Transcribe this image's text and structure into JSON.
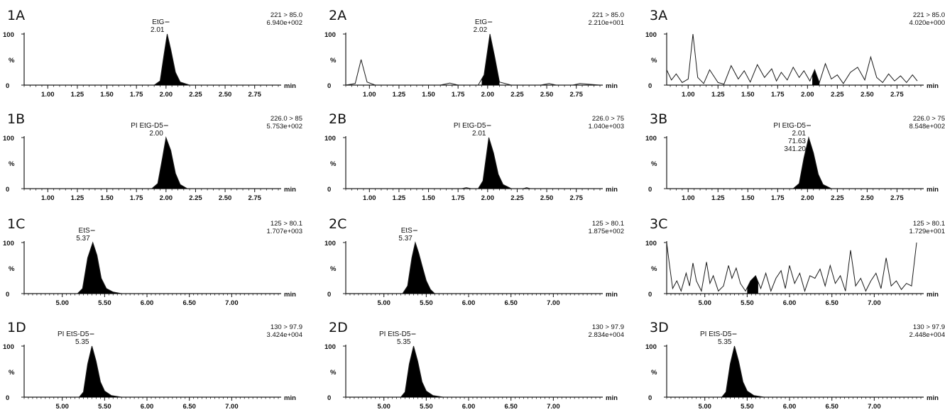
{
  "y_axis": {
    "top_label": "100",
    "mid_label": "%",
    "bottom_label": "0"
  },
  "x_unit": "min",
  "colors": {
    "trace": "#1a1a1a",
    "fill": "#000000",
    "axis": "#1a1a1a"
  },
  "chart_data": [
    {
      "panel": "1A",
      "type": "line",
      "transition": "221 > 85.0",
      "intensity": "6.940e+002",
      "xlim": [
        0.8,
        2.95
      ],
      "ylim": [
        0,
        100
      ],
      "ticks": [
        "1.00",
        "1.25",
        "1.50",
        "1.75",
        "2.00",
        "2.25",
        "2.50",
        "2.75"
      ],
      "peak_labels": [
        "EtG",
        "2.01"
      ],
      "series": [
        {
          "x": [
            0.8,
            1.9,
            1.95,
            1.98,
            2.01,
            2.04,
            2.08,
            2.12,
            2.2,
            2.95
          ],
          "y": [
            0,
            0,
            8,
            55,
            100,
            70,
            25,
            6,
            0,
            0
          ]
        }
      ],
      "shaded": [
        1.9,
        2.2
      ]
    },
    {
      "panel": "2A",
      "type": "line",
      "transition": "221 > 85.0",
      "intensity": "2.210e+001",
      "xlim": [
        0.8,
        2.95
      ],
      "ylim": [
        0,
        100
      ],
      "ticks": [
        "1.00",
        "1.25",
        "1.50",
        "1.75",
        "2.00",
        "2.25",
        "2.50",
        "2.75"
      ],
      "peak_labels": [
        "EtG",
        "2.02"
      ],
      "series": [
        {
          "x": [
            0.8,
            0.88,
            0.93,
            0.98,
            1.05,
            1.6,
            1.68,
            1.75,
            1.92,
            1.97,
            2.02,
            2.06,
            2.1,
            2.2,
            2.45,
            2.52,
            2.58,
            2.72,
            2.78,
            2.95
          ],
          "y": [
            0,
            3,
            50,
            6,
            0,
            0,
            4,
            0,
            0,
            20,
            100,
            55,
            6,
            0,
            0,
            3,
            0,
            0,
            3,
            0
          ]
        }
      ],
      "shaded": [
        1.95,
        2.1
      ]
    },
    {
      "panel": "3A",
      "type": "line",
      "transition": "221 > 85.0",
      "intensity": "4.020e+000",
      "xlim": [
        0.82,
        2.95
      ],
      "ylim": [
        0,
        100
      ],
      "ticks": [
        "1.00",
        "1.25",
        "1.50",
        "1.75",
        "2.00",
        "2.25",
        "2.50",
        "2.75"
      ],
      "peak_labels": [],
      "series": [
        {
          "x": [
            0.82,
            0.86,
            0.9,
            0.95,
            1.0,
            1.04,
            1.08,
            1.13,
            1.18,
            1.25,
            1.3,
            1.36,
            1.42,
            1.47,
            1.52,
            1.58,
            1.64,
            1.7,
            1.74,
            1.78,
            1.83,
            1.88,
            1.93,
            1.97,
            2.02,
            2.06,
            2.1,
            2.15,
            2.2,
            2.25,
            2.3,
            2.36,
            2.42,
            2.48,
            2.53,
            2.58,
            2.63,
            2.68,
            2.73,
            2.78,
            2.83,
            2.88,
            2.92
          ],
          "y": [
            30,
            10,
            22,
            5,
            12,
            100,
            15,
            3,
            30,
            5,
            2,
            38,
            12,
            28,
            6,
            40,
            15,
            32,
            8,
            25,
            10,
            35,
            15,
            28,
            8,
            30,
            5,
            42,
            12,
            20,
            3,
            25,
            35,
            10,
            55,
            15,
            5,
            22,
            8,
            18,
            5,
            20,
            8
          ]
        }
      ],
      "shaded": [
        2.04,
        2.1
      ]
    },
    {
      "panel": "1B",
      "type": "line",
      "transition": "226.0 > 85",
      "intensity": "5.753e+002",
      "xlim": [
        0.8,
        2.95
      ],
      "ylim": [
        0,
        100
      ],
      "ticks": [
        "1.00",
        "1.25",
        "1.50",
        "1.75",
        "2.00",
        "2.25",
        "2.50",
        "2.75"
      ],
      "peak_labels": [
        "PI EtG-D5",
        "2.00"
      ],
      "series": [
        {
          "x": [
            0.8,
            1.88,
            1.93,
            1.97,
            2.0,
            2.04,
            2.08,
            2.12,
            2.18,
            2.95
          ],
          "y": [
            0,
            0,
            10,
            60,
            100,
            75,
            30,
            8,
            0,
            0
          ]
        }
      ],
      "shaded": [
        1.88,
        2.18
      ]
    },
    {
      "panel": "2B",
      "type": "line",
      "transition": "226.0 > 75",
      "intensity": "1.040e+003",
      "xlim": [
        0.8,
        2.95
      ],
      "ylim": [
        0,
        100
      ],
      "ticks": [
        "1.00",
        "1.25",
        "1.50",
        "1.75",
        "2.00",
        "2.25",
        "2.50",
        "2.75"
      ],
      "peak_labels": [
        "PI EtG-D5",
        "2.01"
      ],
      "series": [
        {
          "x": [
            0.8,
            1.78,
            1.82,
            1.86,
            1.92,
            1.96,
            2.01,
            2.05,
            2.09,
            2.13,
            2.2,
            2.3,
            2.33,
            2.36,
            2.95
          ],
          "y": [
            0,
            0,
            2,
            0,
            0,
            15,
            100,
            70,
            28,
            8,
            0,
            0,
            2,
            0,
            0
          ]
        }
      ],
      "shaded": [
        1.92,
        2.2
      ]
    },
    {
      "panel": "3B",
      "type": "line",
      "transition": "226.0 > 75",
      "intensity": "8.548e+002",
      "xlim": [
        0.82,
        2.95
      ],
      "ylim": [
        0,
        100
      ],
      "ticks": [
        "1.00",
        "1.25",
        "1.50",
        "1.75",
        "2.00",
        "2.25",
        "2.50",
        "2.75"
      ],
      "peak_labels": [
        "PI EtG-D5",
        "2.01",
        "71.63",
        "341.20"
      ],
      "series": [
        {
          "x": [
            0.82,
            1.88,
            1.93,
            1.97,
            2.01,
            2.05,
            2.09,
            2.13,
            2.2,
            2.95
          ],
          "y": [
            0,
            0,
            10,
            60,
            100,
            70,
            28,
            8,
            0,
            0
          ]
        }
      ],
      "shaded": [
        1.88,
        2.2
      ]
    },
    {
      "panel": "1C",
      "type": "line",
      "transition": "125 > 80.1",
      "intensity": "1.707e+003",
      "xlim": [
        4.55,
        7.55
      ],
      "ylim": [
        0,
        100
      ],
      "ticks": [
        "5.00",
        "5.50",
        "6.00",
        "6.50",
        "7.00"
      ],
      "peak_labels": [
        "EtS",
        "5.37"
      ],
      "series": [
        {
          "x": [
            4.55,
            5.18,
            5.24,
            5.3,
            5.36,
            5.41,
            5.46,
            5.52,
            5.6,
            5.7,
            7.55
          ],
          "y": [
            0,
            0,
            10,
            70,
            100,
            75,
            30,
            10,
            3,
            0,
            0
          ]
        }
      ],
      "shaded": [
        5.18,
        5.7
      ]
    },
    {
      "panel": "2C",
      "type": "line",
      "transition": "125 > 80.1",
      "intensity": "1.875e+002",
      "xlim": [
        4.55,
        7.55
      ],
      "ylim": [
        0,
        100
      ],
      "ticks": [
        "5.00",
        "5.50",
        "6.00",
        "6.50",
        "7.00"
      ],
      "peak_labels": [
        "EtS",
        "5.37"
      ],
      "series": [
        {
          "x": [
            4.55,
            5.22,
            5.28,
            5.33,
            5.37,
            5.41,
            5.45,
            5.5,
            5.55,
            5.6,
            7.55
          ],
          "y": [
            0,
            0,
            15,
            70,
            100,
            80,
            55,
            25,
            8,
            0,
            0
          ]
        }
      ],
      "shaded": [
        5.22,
        5.6
      ]
    },
    {
      "panel": "3C",
      "type": "line",
      "transition": "125 > 80.1",
      "intensity": "1.729e+001",
      "xlim": [
        4.55,
        7.55
      ],
      "ylim": [
        0,
        100
      ],
      "ticks": [
        "5.00",
        "5.50",
        "6.00",
        "6.50",
        "7.00"
      ],
      "peak_labels": [],
      "series": [
        {
          "x": [
            4.55,
            4.58,
            4.62,
            4.67,
            4.72,
            4.78,
            4.82,
            4.86,
            4.9,
            4.96,
            5.02,
            5.06,
            5.1,
            5.16,
            5.22,
            5.28,
            5.32,
            5.37,
            5.42,
            5.48,
            5.54,
            5.6,
            5.66,
            5.72,
            5.78,
            5.84,
            5.9,
            5.95,
            6.0,
            6.06,
            6.12,
            6.18,
            6.24,
            6.3,
            6.36,
            6.42,
            6.48,
            6.54,
            6.6,
            6.66,
            6.72,
            6.78,
            6.84,
            6.9,
            6.96,
            7.02,
            7.08,
            7.14,
            7.2,
            7.26,
            7.32,
            7.38,
            7.44,
            7.5
          ],
          "y": [
            100,
            60,
            10,
            25,
            5,
            40,
            15,
            60,
            25,
            5,
            62,
            20,
            35,
            5,
            15,
            55,
            30,
            50,
            20,
            5,
            25,
            35,
            10,
            40,
            5,
            30,
            45,
            10,
            55,
            20,
            40,
            5,
            35,
            30,
            48,
            15,
            55,
            20,
            35,
            5,
            85,
            15,
            30,
            5,
            25,
            40,
            10,
            70,
            15,
            25,
            8,
            20,
            15,
            100
          ]
        }
      ],
      "shaded": [
        5.5,
        5.63
      ]
    },
    {
      "panel": "1D",
      "type": "line",
      "transition": "130 > 97.9",
      "intensity": "3.424e+004",
      "xlim": [
        4.55,
        7.55
      ],
      "ylim": [
        0,
        100
      ],
      "ticks": [
        "5.00",
        "5.50",
        "6.00",
        "6.50",
        "7.00"
      ],
      "peak_labels": [
        "PI EtS-D5",
        "5.35"
      ],
      "series": [
        {
          "x": [
            4.55,
            5.2,
            5.25,
            5.3,
            5.35,
            5.4,
            5.45,
            5.5,
            5.58,
            5.7,
            7.55
          ],
          "y": [
            0,
            0,
            10,
            65,
            100,
            70,
            30,
            12,
            3,
            0,
            0
          ]
        }
      ],
      "shaded": [
        5.2,
        5.7
      ]
    },
    {
      "panel": "2D",
      "type": "line",
      "transition": "130 > 97.9",
      "intensity": "2.834e+004",
      "xlim": [
        4.55,
        7.55
      ],
      "ylim": [
        0,
        100
      ],
      "ticks": [
        "5.00",
        "5.50",
        "6.00",
        "6.50",
        "7.00"
      ],
      "peak_labels": [
        "PI EtS-D5",
        "5.35"
      ],
      "series": [
        {
          "x": [
            4.55,
            5.2,
            5.25,
            5.3,
            5.35,
            5.4,
            5.45,
            5.5,
            5.58,
            5.7,
            7.55
          ],
          "y": [
            0,
            0,
            10,
            65,
            100,
            70,
            30,
            12,
            3,
            0,
            0
          ]
        }
      ],
      "shaded": [
        5.2,
        5.7
      ]
    },
    {
      "panel": "3D",
      "type": "line",
      "transition": "130 > 97.9",
      "intensity": "2.448e+004",
      "xlim": [
        4.55,
        7.55
      ],
      "ylim": [
        0,
        100
      ],
      "ticks": [
        "5.00",
        "5.50",
        "6.00",
        "6.50",
        "7.00"
      ],
      "peak_labels": [
        "PI EtS-D5",
        "5.35"
      ],
      "series": [
        {
          "x": [
            4.55,
            5.2,
            5.25,
            5.3,
            5.35,
            5.4,
            5.45,
            5.5,
            5.58,
            5.7,
            7.55
          ],
          "y": [
            0,
            0,
            10,
            65,
            100,
            70,
            30,
            12,
            3,
            0,
            0
          ]
        }
      ],
      "shaded": [
        5.2,
        5.7
      ]
    }
  ]
}
